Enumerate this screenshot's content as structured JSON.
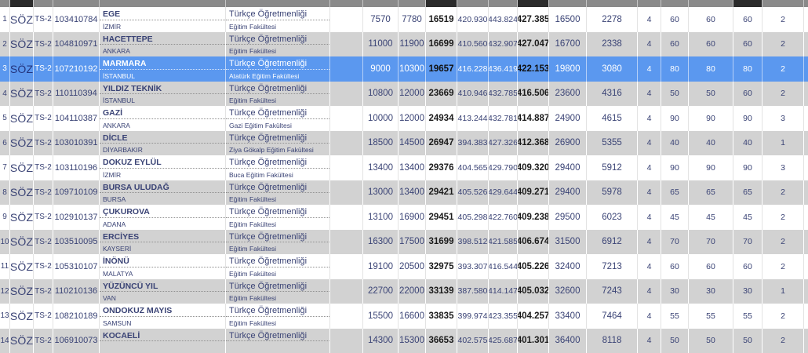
{
  "colors": {
    "selected_row": "#5b98ef",
    "alt_row": "#d2d2d2",
    "header_gray": "#8a8a8a",
    "header_highlight": "#2b2b2b",
    "text_navy": "#3a4375",
    "text_bold": "#1b1b1b"
  },
  "table": {
    "header": {
      "cells": [
        {
          "name": "rank",
          "shade": "gray"
        },
        {
          "name": "score-type",
          "shade": "dark"
        },
        {
          "name": "exam-type",
          "shade": "gray"
        },
        {
          "name": "program-code",
          "shade": "gray"
        },
        {
          "name": "university",
          "shade": "gray"
        },
        {
          "name": "program",
          "shade": "gray"
        },
        {
          "name": "gap",
          "shade": "gray"
        },
        {
          "name": "value-0",
          "shade": "gray"
        },
        {
          "name": "value-1",
          "shade": "gray"
        },
        {
          "name": "value-2",
          "shade": "dark"
        },
        {
          "name": "value-3",
          "shade": "gray"
        },
        {
          "name": "value-4",
          "shade": "gray"
        },
        {
          "name": "value-5",
          "shade": "dark"
        },
        {
          "name": "value-6",
          "shade": "gray"
        },
        {
          "name": "value-7",
          "shade": "gray"
        },
        {
          "name": "value-8",
          "shade": "gray"
        },
        {
          "name": "value-9",
          "shade": "gray"
        },
        {
          "name": "value-10",
          "shade": "gray"
        },
        {
          "name": "value-11",
          "shade": "dark"
        },
        {
          "name": "value-12",
          "shade": "gray"
        },
        {
          "name": "cutoff",
          "shade": "gray"
        }
      ]
    },
    "rows": [
      {
        "rank": "1",
        "score_type": "SÖZ",
        "exam_type": "TS-2",
        "program_code": "103410784",
        "university": "EGE",
        "city": "İZMİR",
        "program": "Türkçe Öğretmenliği",
        "faculty": "Eğitim Fakültesi",
        "selected": false,
        "values": [
          "7570",
          "7780",
          "16519",
          "420.930",
          "443.824",
          "427.385",
          "16500",
          "2278",
          "4",
          "60",
          "60",
          "60",
          "2"
        ]
      },
      {
        "rank": "2",
        "score_type": "SÖZ",
        "exam_type": "TS-2",
        "program_code": "104810971",
        "university": "HACETTEPE",
        "city": "ANKARA",
        "program": "Türkçe Öğretmenliği",
        "faculty": "Eğitim Fakültesi",
        "selected": false,
        "values": [
          "11000",
          "11900",
          "16699",
          "410.560",
          "432.907",
          "427.047",
          "16700",
          "2338",
          "4",
          "60",
          "60",
          "60",
          "2"
        ]
      },
      {
        "rank": "3",
        "score_type": "SÖZ",
        "exam_type": "TS-2",
        "program_code": "107210192",
        "university": "MARMARA",
        "city": "İSTANBUL",
        "program": "Türkçe Öğretmenliği",
        "faculty": "Atatürk Eğitim Fakültesi",
        "selected": true,
        "values": [
          "9000",
          "10300",
          "19657",
          "416.228",
          "436.419",
          "422.153",
          "19800",
          "3080",
          "4",
          "80",
          "80",
          "80",
          "2"
        ]
      },
      {
        "rank": "4",
        "score_type": "SÖZ",
        "exam_type": "TS-2",
        "program_code": "110110394",
        "university": "YILDIZ TEKNİK",
        "city": "İSTANBUL",
        "program": "Türkçe Öğretmenliği",
        "faculty": "Eğitim Fakültesi",
        "selected": false,
        "values": [
          "10800",
          "12000",
          "23669",
          "410.946",
          "432.785",
          "416.506",
          "23600",
          "4316",
          "4",
          "50",
          "50",
          "60",
          "2"
        ]
      },
      {
        "rank": "5",
        "score_type": "SÖZ",
        "exam_type": "TS-2",
        "program_code": "104110387",
        "university": "GAZİ",
        "city": "ANKARA",
        "program": "Türkçe Öğretmenliği",
        "faculty": "Gazi Eğitim Fakültesi",
        "selected": false,
        "values": [
          "10000",
          "12000",
          "24934",
          "413.244",
          "432.781",
          "414.887",
          "24900",
          "4615",
          "4",
          "90",
          "90",
          "90",
          "3"
        ]
      },
      {
        "rank": "6",
        "score_type": "SÖZ",
        "exam_type": "TS-2",
        "program_code": "103010391",
        "university": "DİCLE",
        "city": "DİYARBAKIR",
        "program": "Türkçe Öğretmenliği",
        "faculty": "Ziya Gökalp Eğitim Fakültesi",
        "selected": false,
        "values": [
          "18500",
          "14500",
          "26947",
          "394.383",
          "427.326",
          "412.368",
          "26900",
          "5355",
          "4",
          "40",
          "40",
          "40",
          "1"
        ]
      },
      {
        "rank": "7",
        "score_type": "SÖZ",
        "exam_type": "TS-2",
        "program_code": "103110196",
        "university": "DOKUZ EYLÜL",
        "city": "İZMİR",
        "program": "Türkçe Öğretmenliği",
        "faculty": "Buca Eğitim Fakültesi",
        "selected": false,
        "values": [
          "13400",
          "13400",
          "29376",
          "404.565",
          "429.790",
          "409.320",
          "29400",
          "5912",
          "4",
          "90",
          "90",
          "90",
          "3"
        ]
      },
      {
        "rank": "8",
        "score_type": "SÖZ",
        "exam_type": "TS-2",
        "program_code": "109710109",
        "university": "BURSA ULUDAĞ",
        "city": "BURSA",
        "program": "Türkçe Öğretmenliği",
        "faculty": "Eğitim Fakültesi",
        "selected": false,
        "values": [
          "13000",
          "13400",
          "29421",
          "405.526",
          "429.644",
          "409.271",
          "29400",
          "5978",
          "4",
          "65",
          "65",
          "65",
          "2"
        ]
      },
      {
        "rank": "9",
        "score_type": "SÖZ",
        "exam_type": "TS-2",
        "program_code": "102910137",
        "university": "ÇUKUROVA",
        "city": "ADANA",
        "program": "Türkçe Öğretmenliği",
        "faculty": "Eğitim Fakültesi",
        "selected": false,
        "values": [
          "13100",
          "16900",
          "29451",
          "405.298",
          "422.760",
          "409.238",
          "29500",
          "6023",
          "4",
          "45",
          "45",
          "45",
          "2"
        ]
      },
      {
        "rank": "10",
        "score_type": "SÖZ",
        "exam_type": "TS-2",
        "program_code": "103510095",
        "university": "ERCİYES",
        "city": "KAYSERİ",
        "program": "Türkçe Öğretmenliği",
        "faculty": "Eğitim Fakültesi",
        "selected": false,
        "values": [
          "16300",
          "17500",
          "31699",
          "398.512",
          "421.585",
          "406.674",
          "31500",
          "6912",
          "4",
          "70",
          "70",
          "70",
          "2"
        ]
      },
      {
        "rank": "11",
        "score_type": "SÖZ",
        "exam_type": "TS-2",
        "program_code": "105310107",
        "university": "İNÖNÜ",
        "city": "MALATYA",
        "program": "Türkçe Öğretmenliği",
        "faculty": "Eğitim Fakültesi",
        "selected": false,
        "values": [
          "19100",
          "20500",
          "32975",
          "393.307",
          "416.544",
          "405.226",
          "32400",
          "7213",
          "4",
          "60",
          "60",
          "60",
          "2"
        ]
      },
      {
        "rank": "12",
        "score_type": "SÖZ",
        "exam_type": "TS-2",
        "program_code": "110210136",
        "university": "YÜZÜNCÜ YIL",
        "city": "VAN",
        "program": "Türkçe Öğretmenliği",
        "faculty": "Eğitim Fakültesi",
        "selected": false,
        "values": [
          "22700",
          "22000",
          "33139",
          "387.580",
          "414.147",
          "405.032",
          "32600",
          "7243",
          "4",
          "30",
          "30",
          "30",
          "1"
        ]
      },
      {
        "rank": "13",
        "score_type": "SÖZ",
        "exam_type": "TS-2",
        "program_code": "108210189",
        "university": "ONDOKUZ MAYIS",
        "city": "SAMSUN",
        "program": "Türkçe Öğretmenliği",
        "faculty": "Eğitim Fakültesi",
        "selected": false,
        "values": [
          "15500",
          "16600",
          "33835",
          "399.974",
          "423.355",
          "404.257",
          "33400",
          "7464",
          "4",
          "55",
          "55",
          "55",
          "2"
        ]
      },
      {
        "rank": "14",
        "score_type": "SÖZ",
        "exam_type": "TS-2",
        "program_code": "106910073",
        "university": "KOCAELİ",
        "city": "",
        "program": "Türkçe Öğretmenliği",
        "faculty": "",
        "selected": false,
        "values": [
          "14300",
          "15300",
          "36653",
          "402.575",
          "425.687",
          "401.301",
          "36400",
          "8118",
          "4",
          "50",
          "50",
          "50",
          "2"
        ]
      }
    ]
  }
}
